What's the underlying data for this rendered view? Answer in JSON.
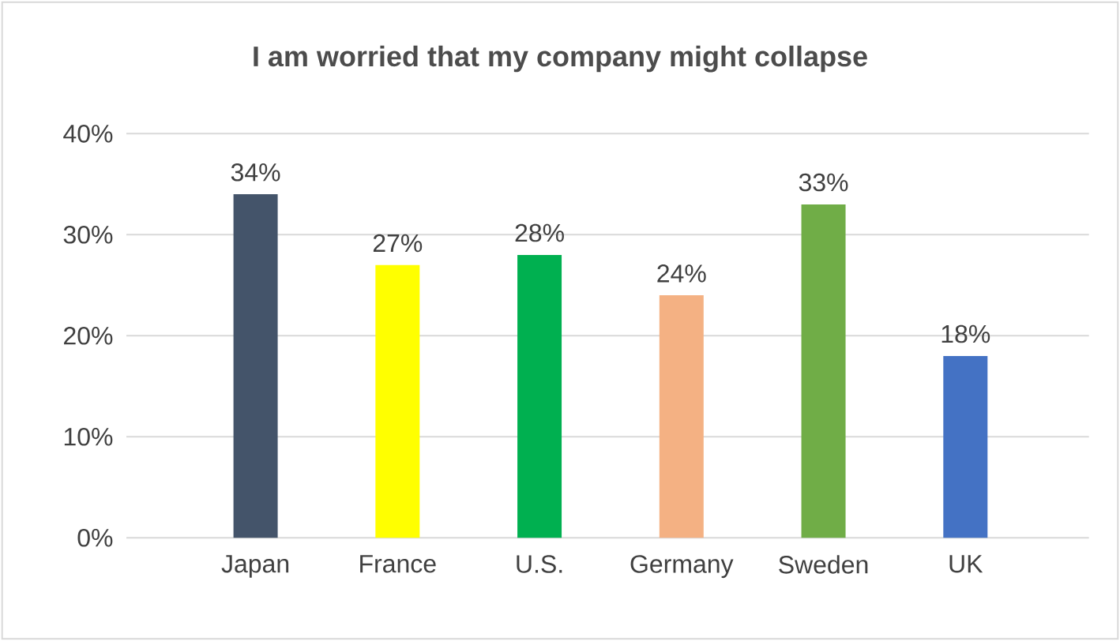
{
  "chart_data": {
    "type": "bar",
    "title": "I am worried that my company might collapse",
    "categories": [
      "Japan",
      "France",
      "U.S.",
      "Germany",
      "Sweden",
      "UK"
    ],
    "values": [
      34,
      27,
      28,
      24,
      33,
      18
    ],
    "colors": [
      "#44546a",
      "#ffff00",
      "#00b050",
      "#f4b183",
      "#70ad47",
      "#4472c4"
    ],
    "value_labels": [
      "34%",
      "27%",
      "28%",
      "24%",
      "33%",
      "18%"
    ],
    "ylim": [
      0,
      40
    ],
    "yticks": [
      {
        "value": 0,
        "label": "0%"
      },
      {
        "value": 10,
        "label": "10%"
      },
      {
        "value": 20,
        "label": "20%"
      },
      {
        "value": 30,
        "label": "30%"
      },
      {
        "value": 40,
        "label": "40%"
      }
    ],
    "grid": "y"
  }
}
